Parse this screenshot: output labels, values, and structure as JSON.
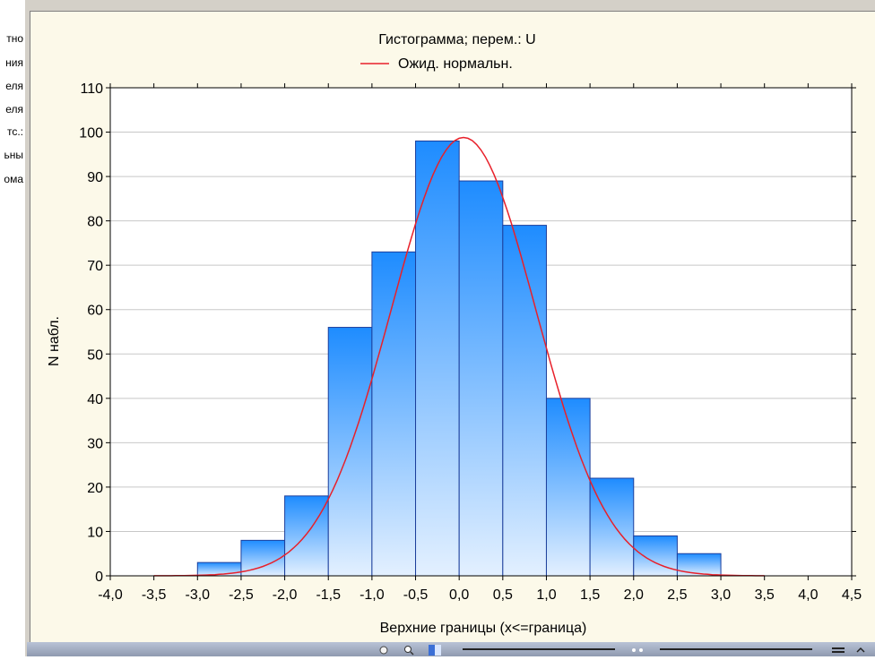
{
  "left_panel": {
    "items": [
      "тно",
      "ния",
      "еля",
      "еля",
      "тс.:",
      "ьны",
      "ома"
    ]
  },
  "chart_data": {
    "type": "bar",
    "title": "Гистограмма; перем.: U",
    "legend": {
      "entries": [
        "Ожид. нормальн."
      ],
      "placement": "top-center"
    },
    "xlabel": "Верхние границы (x<=граница)",
    "ylabel": "N набл.",
    "xlim": [
      -4.0,
      4.5
    ],
    "ylim": [
      0,
      110
    ],
    "xticks": [
      -4.0,
      -3.5,
      -3.0,
      -2.5,
      -2.0,
      -1.5,
      -1.0,
      -0.5,
      0.0,
      0.5,
      1.0,
      1.5,
      2.0,
      2.5,
      3.0,
      3.5,
      4.0,
      4.5
    ],
    "xtick_labels": [
      "-4,0",
      "-3,5",
      "-3,0",
      "-2,5",
      "-2,0",
      "-1,5",
      "-1,0",
      "-0,5",
      "0,0",
      "0,5",
      "1,0",
      "1,5",
      "2,0",
      "2,5",
      "3,0",
      "3,5",
      "4,0",
      "4,5"
    ],
    "yticks": [
      0,
      10,
      20,
      30,
      40,
      50,
      60,
      70,
      80,
      90,
      100,
      110
    ],
    "grid": true,
    "bins": [
      {
        "from": -3.5,
        "to": -3.0,
        "value": 0
      },
      {
        "from": -3.0,
        "to": -2.5,
        "value": 3
      },
      {
        "from": -2.5,
        "to": -2.0,
        "value": 8
      },
      {
        "from": -2.0,
        "to": -1.5,
        "value": 18
      },
      {
        "from": -1.5,
        "to": -1.0,
        "value": 56
      },
      {
        "from": -1.0,
        "to": -0.5,
        "value": 73
      },
      {
        "from": -0.5,
        "to": 0.0,
        "value": 98
      },
      {
        "from": 0.0,
        "to": 0.5,
        "value": 89
      },
      {
        "from": 0.5,
        "to": 1.0,
        "value": 79
      },
      {
        "from": 1.0,
        "to": 1.5,
        "value": 40
      },
      {
        "from": 1.5,
        "to": 2.0,
        "value": 22
      },
      {
        "from": 2.0,
        "to": 2.5,
        "value": 9
      },
      {
        "from": 2.5,
        "to": 3.0,
        "value": 5
      }
    ],
    "expected_normal": {
      "name": "Ожид. нормальн.",
      "color": "#e8202a",
      "mean": 0.05,
      "peak": 98.8,
      "sd": 0.83,
      "x_range": [
        -3.5,
        3.5
      ]
    },
    "colors": {
      "bar_top": "#1e8cff",
      "bar_bottom": "#e3f0ff",
      "bar_stroke": "#1c3f9c",
      "grid": "#c8c8c8",
      "plot_bg": "#ffffff",
      "panel_bg": "#fcf9e9"
    }
  }
}
